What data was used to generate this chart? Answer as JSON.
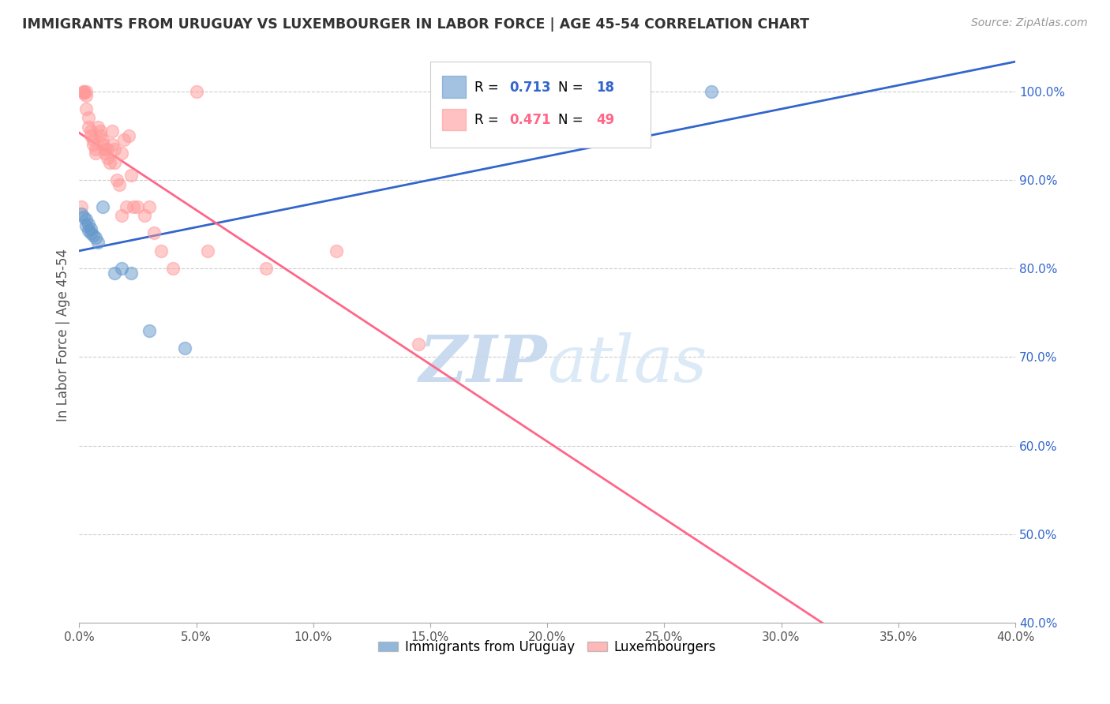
{
  "title": "IMMIGRANTS FROM URUGUAY VS LUXEMBOURGER IN LABOR FORCE | AGE 45-54 CORRELATION CHART",
  "source": "Source: ZipAtlas.com",
  "ylabel": "In Labor Force | Age 45-54",
  "xlim": [
    0.0,
    0.4
  ],
  "ylim": [
    0.4,
    1.05
  ],
  "xticks": [
    0.0,
    0.05,
    0.1,
    0.15,
    0.2,
    0.25,
    0.3,
    0.35,
    0.4
  ],
  "yticks": [
    0.4,
    0.5,
    0.6,
    0.7,
    0.8,
    0.9,
    1.0
  ],
  "ytick_labels": [
    "40.0%",
    "50.0%",
    "60.0%",
    "70.0%",
    "80.0%",
    "90.0%",
    "100.0%"
  ],
  "xtick_labels": [
    "0.0%",
    "5.0%",
    "10.0%",
    "15.0%",
    "20.0%",
    "25.0%",
    "30.0%",
    "35.0%",
    "40.0%"
  ],
  "watermark_zip": "ZIP",
  "watermark_atlas": "atlas",
  "legend_blue_label": "Immigrants from Uruguay",
  "legend_pink_label": "Luxembourgers",
  "blue_R": "0.713",
  "blue_N": "18",
  "pink_R": "0.471",
  "pink_N": "49",
  "blue_color": "#6699cc",
  "pink_color": "#ff9999",
  "blue_line_color": "#3366cc",
  "pink_line_color": "#ff6688",
  "blue_points": [
    [
      0.001,
      0.862
    ],
    [
      0.002,
      0.858
    ],
    [
      0.003,
      0.855
    ],
    [
      0.003,
      0.848
    ],
    [
      0.004,
      0.85
    ],
    [
      0.004,
      0.843
    ],
    [
      0.005,
      0.845
    ],
    [
      0.005,
      0.84
    ],
    [
      0.006,
      0.838
    ],
    [
      0.007,
      0.835
    ],
    [
      0.008,
      0.83
    ],
    [
      0.01,
      0.87
    ],
    [
      0.015,
      0.795
    ],
    [
      0.018,
      0.8
    ],
    [
      0.022,
      0.795
    ],
    [
      0.03,
      0.73
    ],
    [
      0.045,
      0.71
    ],
    [
      0.27,
      1.0
    ]
  ],
  "pink_points": [
    [
      0.001,
      0.87
    ],
    [
      0.002,
      1.0
    ],
    [
      0.002,
      1.0
    ],
    [
      0.002,
      0.998
    ],
    [
      0.003,
      1.0
    ],
    [
      0.003,
      0.995
    ],
    [
      0.003,
      0.98
    ],
    [
      0.004,
      0.97
    ],
    [
      0.004,
      0.96
    ],
    [
      0.005,
      0.955
    ],
    [
      0.005,
      0.95
    ],
    [
      0.006,
      0.945
    ],
    [
      0.006,
      0.94
    ],
    [
      0.007,
      0.935
    ],
    [
      0.007,
      0.93
    ],
    [
      0.008,
      0.96
    ],
    [
      0.009,
      0.955
    ],
    [
      0.009,
      0.95
    ],
    [
      0.01,
      0.945
    ],
    [
      0.01,
      0.94
    ],
    [
      0.011,
      0.935
    ],
    [
      0.011,
      0.93
    ],
    [
      0.012,
      0.935
    ],
    [
      0.012,
      0.925
    ],
    [
      0.013,
      0.92
    ],
    [
      0.014,
      0.955
    ],
    [
      0.014,
      0.94
    ],
    [
      0.015,
      0.92
    ],
    [
      0.015,
      0.935
    ],
    [
      0.016,
      0.9
    ],
    [
      0.017,
      0.895
    ],
    [
      0.018,
      0.93
    ],
    [
      0.018,
      0.86
    ],
    [
      0.019,
      0.945
    ],
    [
      0.02,
      0.87
    ],
    [
      0.021,
      0.95
    ],
    [
      0.022,
      0.905
    ],
    [
      0.023,
      0.87
    ],
    [
      0.025,
      0.87
    ],
    [
      0.028,
      0.86
    ],
    [
      0.03,
      0.87
    ],
    [
      0.032,
      0.84
    ],
    [
      0.035,
      0.82
    ],
    [
      0.04,
      0.8
    ],
    [
      0.05,
      1.0
    ],
    [
      0.055,
      0.82
    ],
    [
      0.08,
      0.8
    ],
    [
      0.11,
      0.82
    ],
    [
      0.145,
      0.715
    ]
  ]
}
